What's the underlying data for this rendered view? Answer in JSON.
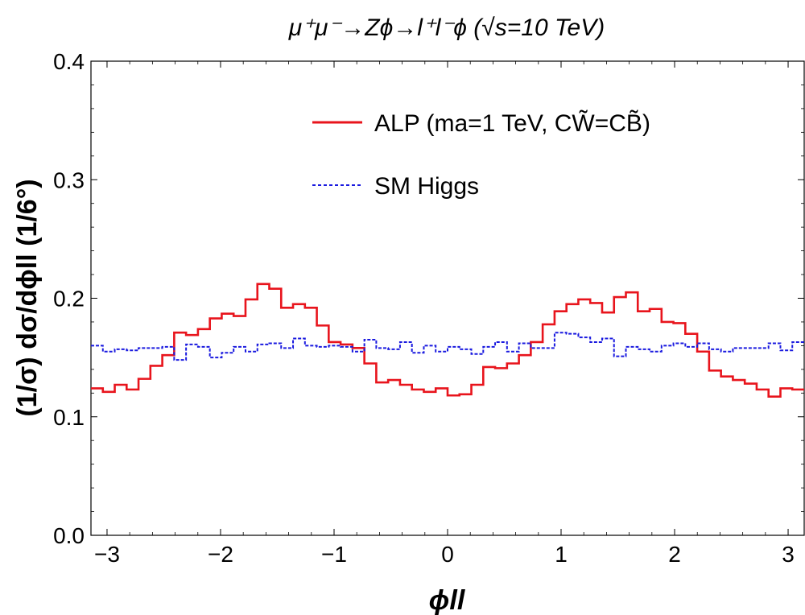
{
  "chart_data": {
    "type": "line",
    "title": "μ⁺μ⁻→Zϕ→l⁺l⁻ϕ (√s=10 TeV)",
    "xlabel": "ϕll",
    "ylabel": "(1/σ) dσ/dϕll (1/6°)",
    "xlim": [
      -3.1416,
      3.1416
    ],
    "ylim": [
      0.0,
      0.4
    ],
    "x_ticks": [
      -3,
      -2,
      -1,
      0,
      1,
      2,
      3
    ],
    "x_tick_labels": [
      "−3",
      "−2",
      "−1",
      "0",
      "1",
      "2",
      "3"
    ],
    "y_ticks": [
      0.0,
      0.1,
      0.2,
      0.3,
      0.4
    ],
    "y_tick_labels": [
      "0.0",
      "0.1",
      "0.2",
      "0.3",
      "0.4"
    ],
    "grid": false,
    "legend_position": "top-right",
    "bin_width_deg": 6,
    "series": [
      {
        "name": "ALP (ma=1 TeV, CW̃=CB̃)",
        "color": "#e8141c",
        "style": "solid",
        "values": [
          0.124,
          0.121,
          0.127,
          0.123,
          0.132,
          0.143,
          0.152,
          0.171,
          0.169,
          0.174,
          0.183,
          0.187,
          0.185,
          0.199,
          0.212,
          0.208,
          0.192,
          0.195,
          0.192,
          0.177,
          0.163,
          0.161,
          0.158,
          0.145,
          0.129,
          0.131,
          0.127,
          0.123,
          0.121,
          0.124,
          0.118,
          0.119,
          0.127,
          0.142,
          0.141,
          0.145,
          0.152,
          0.163,
          0.178,
          0.189,
          0.195,
          0.199,
          0.196,
          0.188,
          0.201,
          0.205,
          0.189,
          0.191,
          0.18,
          0.179,
          0.17,
          0.155,
          0.139,
          0.134,
          0.131,
          0.128,
          0.123,
          0.117,
          0.124,
          0.123
        ]
      },
      {
        "name": "SM Higgs",
        "color": "#1a1adf",
        "style": "dashed",
        "values": [
          0.16,
          0.155,
          0.157,
          0.156,
          0.158,
          0.158,
          0.159,
          0.148,
          0.161,
          0.159,
          0.15,
          0.154,
          0.159,
          0.155,
          0.161,
          0.162,
          0.158,
          0.166,
          0.16,
          0.159,
          0.16,
          0.159,
          0.155,
          0.165,
          0.158,
          0.157,
          0.163,
          0.154,
          0.16,
          0.155,
          0.159,
          0.157,
          0.153,
          0.159,
          0.163,
          0.155,
          0.162,
          0.158,
          0.158,
          0.171,
          0.17,
          0.167,
          0.163,
          0.166,
          0.151,
          0.159,
          0.157,
          0.155,
          0.16,
          0.162,
          0.159,
          0.162,
          0.157,
          0.155,
          0.158,
          0.158,
          0.158,
          0.162,
          0.156,
          0.163
        ]
      }
    ]
  }
}
